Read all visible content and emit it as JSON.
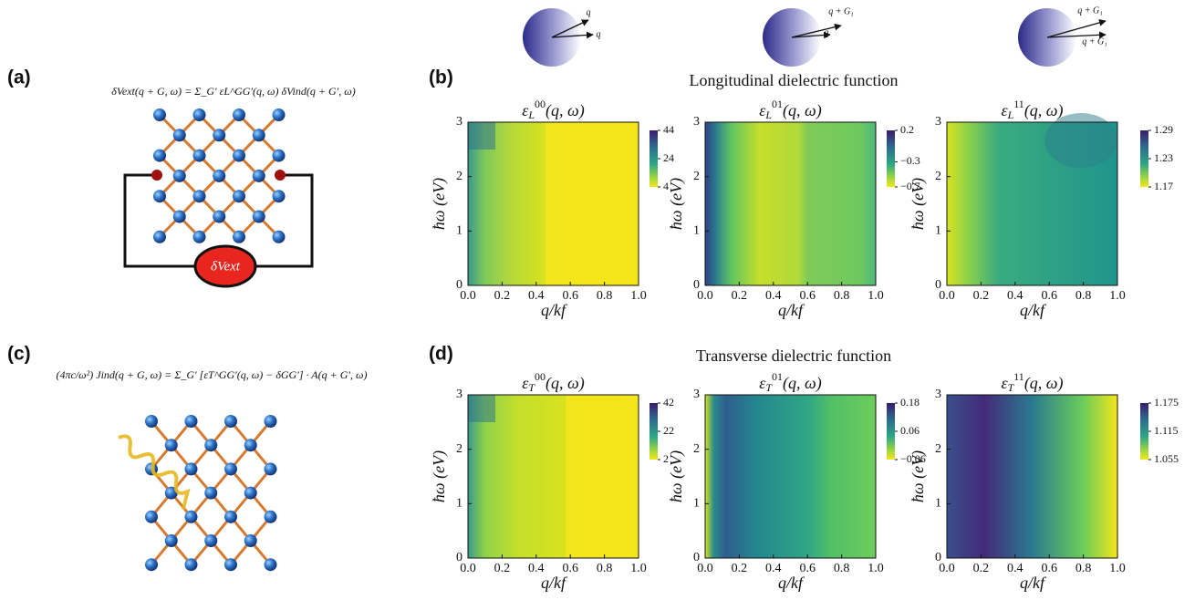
{
  "panels": {
    "a": "(a)",
    "b": "(b)",
    "c": "(c)",
    "d": "(d)"
  },
  "equations": {
    "a": "δVext(q + G, ω) = Σ_G′ εL^GG′(q, ω) δVind(q + G′, ω)",
    "c": "(4πc/ω²) Jind(q + G, ω) = Σ_G′ [εT^GG′(q, ω) − δGG′] · A(q + G′, ω)"
  },
  "source_label": "δVext",
  "icons": [
    {
      "labels": [
        "q",
        "q"
      ]
    },
    {
      "labels": [
        "q + G₁",
        "q"
      ]
    },
    {
      "labels": [
        "q + G₁",
        "q + G₁"
      ]
    }
  ],
  "row_titles": [
    "Longitudinal dielectric function",
    "Transverse dielectric function"
  ],
  "chart_data": [
    {
      "type": "contour",
      "title": {
        "symbol": "ε",
        "sub": "L",
        "sup": "00",
        "args": "(q, ω)"
      },
      "xlabel": "q/kf",
      "ylabel": "ħω (eV)",
      "xlim": [
        0,
        1
      ],
      "ylim": [
        0,
        3
      ],
      "xticks": [
        {
          "value": 0,
          "label": "0.0"
        },
        0.2,
        0.4,
        0.6,
        0.8,
        {
          "value": 1,
          "label": "1.0"
        }
      ],
      "yticks": [
        0,
        1,
        2,
        3
      ],
      "clim": [
        4,
        44
      ],
      "cticks": [
        44,
        24,
        4
      ]
    },
    {
      "type": "contour",
      "title": {
        "symbol": "ε",
        "sub": "L",
        "sup": "01",
        "args": "(q, ω)"
      },
      "xlabel": "q/kf",
      "ylabel": "ħω (eV)",
      "xlim": [
        0,
        1
      ],
      "ylim": [
        0,
        3
      ],
      "xticks": [
        {
          "value": 0,
          "label": "0.0"
        },
        0.2,
        0.4,
        0.6,
        0.8,
        {
          "value": 1,
          "label": "1.0"
        }
      ],
      "yticks": [
        0,
        1,
        2,
        3
      ],
      "clim": [
        -0.7,
        0.2
      ],
      "cticks": [
        0.2,
        {
          "value": -0.3,
          "label": "−0.3"
        },
        {
          "value": -0.7,
          "label": "−0.7"
        }
      ]
    },
    {
      "type": "contour",
      "title": {
        "symbol": "ε",
        "sub": "L",
        "sup": "11",
        "args": "(q, ω)"
      },
      "xlabel": "q/kf",
      "ylabel": "ħω (eV)",
      "xlim": [
        0,
        1
      ],
      "ylim": [
        0,
        3
      ],
      "xticks": [
        {
          "value": 0,
          "label": "0.0"
        },
        0.2,
        0.4,
        0.6,
        0.8,
        {
          "value": 1,
          "label": "1.0"
        }
      ],
      "yticks": [
        0,
        1,
        2,
        3
      ],
      "clim": [
        1.17,
        1.29
      ],
      "cticks": [
        1.29,
        1.23,
        1.17
      ]
    },
    {
      "type": "contour",
      "title": {
        "symbol": "ε",
        "sub": "T",
        "sup": "00",
        "args": "(q, ω)"
      },
      "xlabel": "q/kf",
      "ylabel": "ħω (eV)",
      "xlim": [
        0,
        1
      ],
      "ylim": [
        0,
        3
      ],
      "xticks": [
        {
          "value": 0,
          "label": "0.0"
        },
        0.2,
        0.4,
        0.6,
        0.8,
        {
          "value": 1,
          "label": "1.0"
        }
      ],
      "yticks": [
        0,
        1,
        2,
        3
      ],
      "clim": [
        2,
        42
      ],
      "cticks": [
        42,
        22,
        2
      ]
    },
    {
      "type": "contour",
      "title": {
        "symbol": "ε",
        "sub": "T",
        "sup": "01",
        "args": "(q, ω)"
      },
      "xlabel": "q/kf",
      "ylabel": "ħω (eV)",
      "xlim": [
        0,
        1
      ],
      "ylim": [
        0,
        3
      ],
      "xticks": [
        {
          "value": 0,
          "label": "0.0"
        },
        0.2,
        0.4,
        0.6,
        0.8,
        {
          "value": 1,
          "label": "1.0"
        }
      ],
      "yticks": [
        0,
        1,
        2,
        3
      ],
      "clim": [
        -0.06,
        0.18
      ],
      "cticks": [
        0.18,
        0.06,
        {
          "value": -0.06,
          "label": "−0.06"
        }
      ]
    },
    {
      "type": "contour",
      "title": {
        "symbol": "ε",
        "sub": "T",
        "sup": "11",
        "args": "(q, ω)"
      },
      "xlabel": "q/kf",
      "ylabel": "ħω (eV)",
      "xlim": [
        0,
        1
      ],
      "ylim": [
        0,
        3
      ],
      "xticks": [
        {
          "value": 0,
          "label": "0.0"
        },
        0.2,
        0.4,
        0.6,
        0.8,
        {
          "value": 1,
          "label": "1.0"
        }
      ],
      "yticks": [
        0,
        1,
        2,
        3
      ],
      "clim": [
        1.055,
        1.175
      ],
      "cticks": [
        1.175,
        1.115,
        1.055
      ]
    }
  ]
}
